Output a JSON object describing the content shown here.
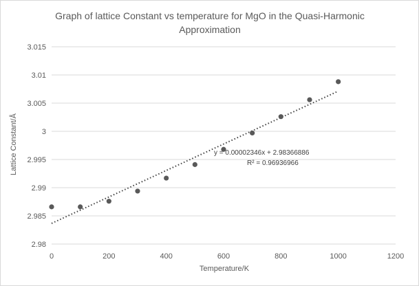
{
  "chart_data": {
    "type": "scatter",
    "title_lines": [
      "Graph of lattice Constant vs temperature for MgO in the Quasi-Harmonic",
      "Approximation"
    ],
    "xlabel": "Temperature/K",
    "ylabel": "Lattice Constant/Å",
    "xlim": [
      0,
      1200
    ],
    "ylim": [
      2.98,
      3.015
    ],
    "x_ticks": [
      0,
      200,
      400,
      600,
      800,
      1000,
      1200
    ],
    "y_ticks": [
      2.98,
      2.985,
      2.99,
      2.995,
      3,
      3.005,
      3.01,
      3.015
    ],
    "x_tick_labels": [
      "0",
      "200",
      "400",
      "600",
      "800",
      "1000",
      "1200"
    ],
    "y_tick_labels": [
      "2.98",
      "2.985",
      "2.99",
      "2.995",
      "3",
      "3.005",
      "3.01",
      "3.015"
    ],
    "grid": "horizontal",
    "marker_color": "#595959",
    "trendline_color": "#404040",
    "series": [
      {
        "name": "Lattice constant",
        "x": [
          0,
          100,
          200,
          300,
          400,
          500,
          600,
          700,
          800,
          900,
          1000
        ],
        "y": [
          2.9866,
          2.9866,
          2.9876,
          2.9894,
          2.9917,
          2.9941,
          2.9968,
          2.9997,
          3.0026,
          3.0056,
          3.0088
        ]
      }
    ],
    "trendline": {
      "type": "linear",
      "slope": 2.346e-05,
      "intercept": 2.98366886,
      "x_range": [
        0,
        1000
      ],
      "equation_label": "y = 0.00002346x + 2.98366886",
      "r2_label": "R² = 0.96936966"
    }
  }
}
